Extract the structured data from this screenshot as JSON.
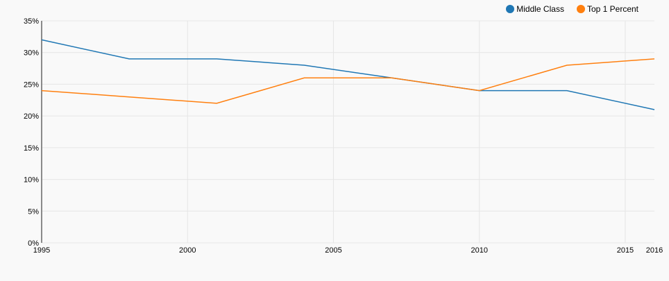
{
  "chart_data": {
    "type": "line",
    "title": "",
    "xlabel": "",
    "ylabel": "",
    "xlim": [
      1995,
      2016
    ],
    "ylim": [
      0,
      35
    ],
    "x_ticks": [
      1995,
      2000,
      2005,
      2010,
      2015,
      2016
    ],
    "x_tick_labels": [
      "1995",
      "2000",
      "2005",
      "2010",
      "2015",
      "2016"
    ],
    "y_ticks": [
      0,
      5,
      10,
      15,
      20,
      25,
      30,
      35
    ],
    "y_tick_labels": [
      "0%",
      "5%",
      "10%",
      "15%",
      "20%",
      "25%",
      "30%",
      "35%"
    ],
    "grid": true,
    "legend_position": "top-right",
    "series": [
      {
        "name": "Middle Class",
        "color": "#1f77b4",
        "x": [
          1995,
          1998,
          2001,
          2004,
          2007,
          2010,
          2013,
          2016
        ],
        "values": [
          32,
          29,
          29,
          28,
          26,
          24,
          24,
          21
        ]
      },
      {
        "name": "Top 1 Percent",
        "color": "#ff7f0e",
        "x": [
          1995,
          1998,
          2001,
          2004,
          2007,
          2010,
          2013,
          2016
        ],
        "values": [
          24,
          23,
          22,
          26,
          26,
          24,
          28,
          29
        ]
      }
    ]
  }
}
